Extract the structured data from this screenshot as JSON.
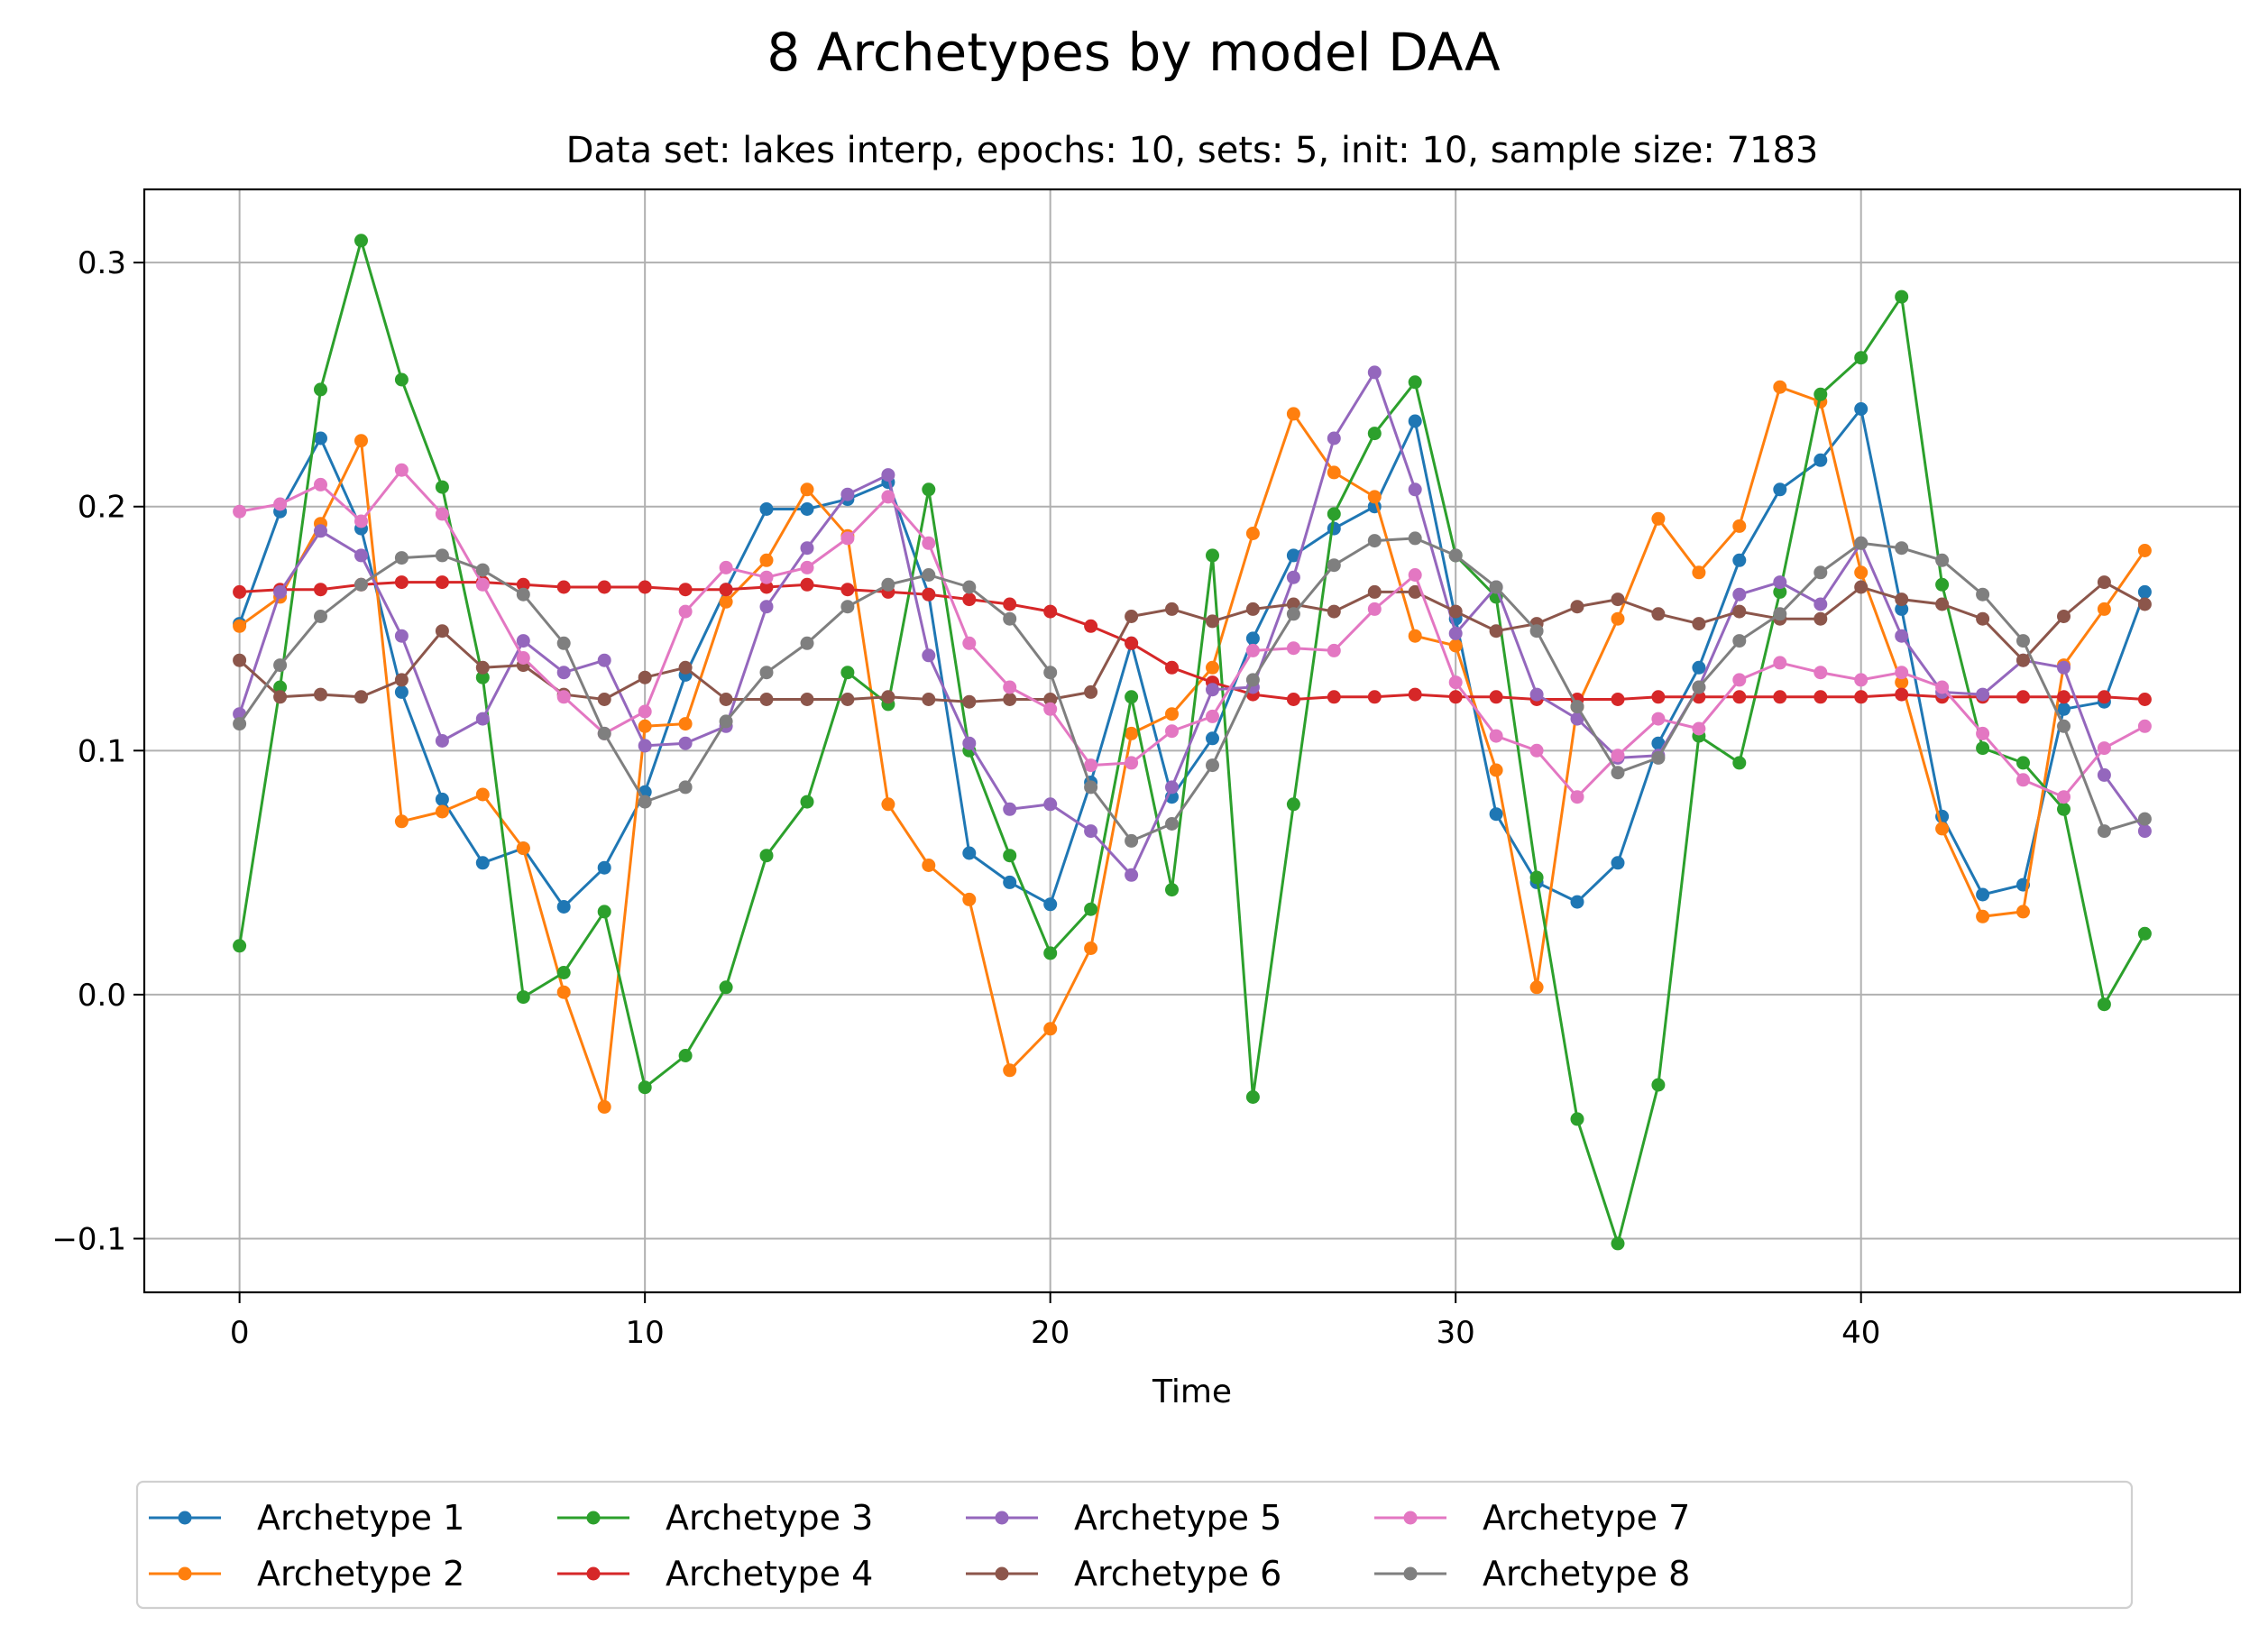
{
  "chart_data": {
    "type": "line",
    "title": "8 Archetypes by model DAA",
    "subtitle": "Data set: lakes interp, epochs: 10, sets: 5, init: 10, sample size: 7183",
    "xlabel": "Time",
    "ylabel": "",
    "xlim": [
      -2.35,
      49.35
    ],
    "ylim": [
      -0.122,
      0.33
    ],
    "xticks": [
      0,
      10,
      20,
      30,
      40
    ],
    "yticks": [
      -0.1,
      0.0,
      0.1,
      0.2,
      0.3
    ],
    "yticklabels": [
      "−0.1",
      "0.0",
      "0.1",
      "0.2",
      "0.3"
    ],
    "grid": true,
    "legend_position": "below-center",
    "legend_columns": 5,
    "x": [
      0,
      1,
      2,
      3,
      4,
      5,
      6,
      7,
      8,
      9,
      10,
      11,
      12,
      13,
      14,
      15,
      16,
      17,
      18,
      19,
      20,
      21,
      22,
      23,
      24,
      25,
      26,
      27,
      28,
      29,
      30,
      31,
      32,
      33,
      34,
      35,
      36,
      37,
      38,
      39,
      40,
      41,
      42,
      43,
      44,
      45,
      46,
      47
    ],
    "series": [
      {
        "name": "Archetype 1",
        "color": "#1f77b4",
        "values": [
          0.152,
          0.198,
          0.228,
          0.191,
          0.124,
          0.08,
          0.054,
          0.06,
          0.036,
          0.052,
          0.083,
          0.131,
          0.166,
          0.199,
          0.199,
          0.203,
          0.21,
          0.164,
          0.058,
          0.046,
          0.037,
          0.087,
          0.144,
          0.081,
          0.105,
          0.146,
          0.18,
          0.191,
          0.2,
          0.235,
          0.154,
          0.074,
          0.046,
          0.038,
          0.054,
          0.103,
          0.134,
          0.178,
          0.207,
          0.219,
          0.24,
          0.158,
          0.073,
          0.041,
          0.045,
          0.117,
          0.12,
          0.165
        ]
      },
      {
        "name": "Archetype 2",
        "color": "#ff7f0e",
        "values": [
          0.151,
          0.163,
          0.193,
          0.227,
          0.071,
          0.075,
          0.082,
          0.06,
          0.001,
          -0.046,
          0.11,
          0.111,
          0.161,
          0.178,
          0.207,
          0.188,
          0.078,
          0.053,
          0.039,
          -0.031,
          -0.014,
          0.019,
          0.107,
          0.115,
          0.134,
          0.189,
          0.238,
          0.214,
          0.204,
          0.147,
          0.143,
          0.092,
          0.003,
          0.118,
          0.154,
          0.195,
          0.173,
          0.192,
          0.249,
          0.243,
          0.173,
          0.128,
          0.068,
          0.032,
          0.034,
          0.135,
          0.158,
          0.182
        ]
      },
      {
        "name": "Archetype 3",
        "color": "#2ca02c",
        "values": [
          0.02,
          0.126,
          0.248,
          0.309,
          0.252,
          0.208,
          0.13,
          -0.001,
          0.009,
          0.034,
          -0.038,
          -0.025,
          0.003,
          0.057,
          0.079,
          0.132,
          0.119,
          0.207,
          0.1,
          0.057,
          0.017,
          0.035,
          0.122,
          0.043,
          0.18,
          -0.042,
          0.078,
          0.197,
          0.23,
          0.251,
          0.18,
          0.163,
          0.048,
          -0.051,
          -0.102,
          -0.037,
          0.106,
          0.095,
          0.165,
          0.246,
          0.261,
          0.286,
          0.168,
          0.101,
          0.095,
          0.076,
          -0.004,
          0.025
        ]
      },
      {
        "name": "Archetype 4",
        "color": "#d62728",
        "values": [
          0.165,
          0.166,
          0.166,
          0.168,
          0.169,
          0.169,
          0.169,
          0.168,
          0.167,
          0.167,
          0.167,
          0.166,
          0.166,
          0.167,
          0.168,
          0.166,
          0.165,
          0.164,
          0.162,
          0.16,
          0.157,
          0.151,
          0.144,
          0.134,
          0.128,
          0.123,
          0.121,
          0.122,
          0.122,
          0.123,
          0.122,
          0.122,
          0.121,
          0.121,
          0.121,
          0.122,
          0.122,
          0.122,
          0.122,
          0.122,
          0.122,
          0.123,
          0.122,
          0.122,
          0.122,
          0.122,
          0.122,
          0.121
        ]
      },
      {
        "name": "Archetype 5",
        "color": "#9467bd",
        "values": [
          0.115,
          0.165,
          0.19,
          0.18,
          0.147,
          0.104,
          0.113,
          0.145,
          0.132,
          0.137,
          0.102,
          0.103,
          0.11,
          0.159,
          0.183,
          0.205,
          0.213,
          0.139,
          0.103,
          0.076,
          0.078,
          0.067,
          0.049,
          0.085,
          0.125,
          0.126,
          0.171,
          0.228,
          0.255,
          0.207,
          0.148,
          0.167,
          0.123,
          0.113,
          0.097,
          0.098,
          0.126,
          0.164,
          0.169,
          0.16,
          0.185,
          0.147,
          0.124,
          0.123,
          0.137,
          0.134,
          0.09,
          0.067
        ]
      },
      {
        "name": "Archetype 6",
        "color": "#8c564b",
        "values": [
          0.137,
          0.122,
          0.123,
          0.122,
          0.129,
          0.149,
          0.134,
          0.135,
          0.123,
          0.121,
          0.13,
          0.134,
          0.121,
          0.121,
          0.121,
          0.121,
          0.122,
          0.121,
          0.12,
          0.121,
          0.121,
          0.124,
          0.155,
          0.158,
          0.153,
          0.158,
          0.16,
          0.157,
          0.165,
          0.165,
          0.157,
          0.149,
          0.152,
          0.159,
          0.162,
          0.156,
          0.152,
          0.157,
          0.154,
          0.154,
          0.167,
          0.162,
          0.16,
          0.154,
          0.137,
          0.155,
          0.169,
          0.16
        ]
      },
      {
        "name": "Archetype 7",
        "color": "#e377c2",
        "values": [
          0.198,
          0.201,
          0.209,
          0.194,
          0.215,
          0.197,
          0.168,
          0.138,
          0.122,
          0.107,
          0.116,
          0.157,
          0.175,
          0.171,
          0.175,
          0.187,
          0.204,
          0.185,
          0.144,
          0.126,
          0.117,
          0.094,
          0.095,
          0.108,
          0.114,
          0.141,
          0.142,
          0.141,
          0.158,
          0.172,
          0.128,
          0.106,
          0.1,
          0.081,
          0.098,
          0.113,
          0.109,
          0.129,
          0.136,
          0.132,
          0.129,
          0.132,
          0.126,
          0.107,
          0.088,
          0.081,
          0.101,
          0.11
        ]
      },
      {
        "name": "Archetype 8",
        "color": "#7f7f7f",
        "values": [
          0.111,
          0.135,
          0.155,
          0.168,
          0.179,
          0.18,
          0.174,
          0.164,
          0.144,
          0.107,
          0.079,
          0.085,
          0.112,
          0.132,
          0.144,
          0.159,
          0.168,
          0.172,
          0.167,
          0.154,
          0.132,
          0.085,
          0.063,
          0.07,
          0.094,
          0.129,
          0.156,
          0.176,
          0.186,
          0.187,
          0.18,
          0.167,
          0.149,
          0.118,
          0.091,
          0.097,
          0.126,
          0.145,
          0.156,
          0.173,
          0.185,
          0.183,
          0.178,
          0.164,
          0.145,
          0.11,
          0.067,
          0.072
        ]
      }
    ]
  }
}
